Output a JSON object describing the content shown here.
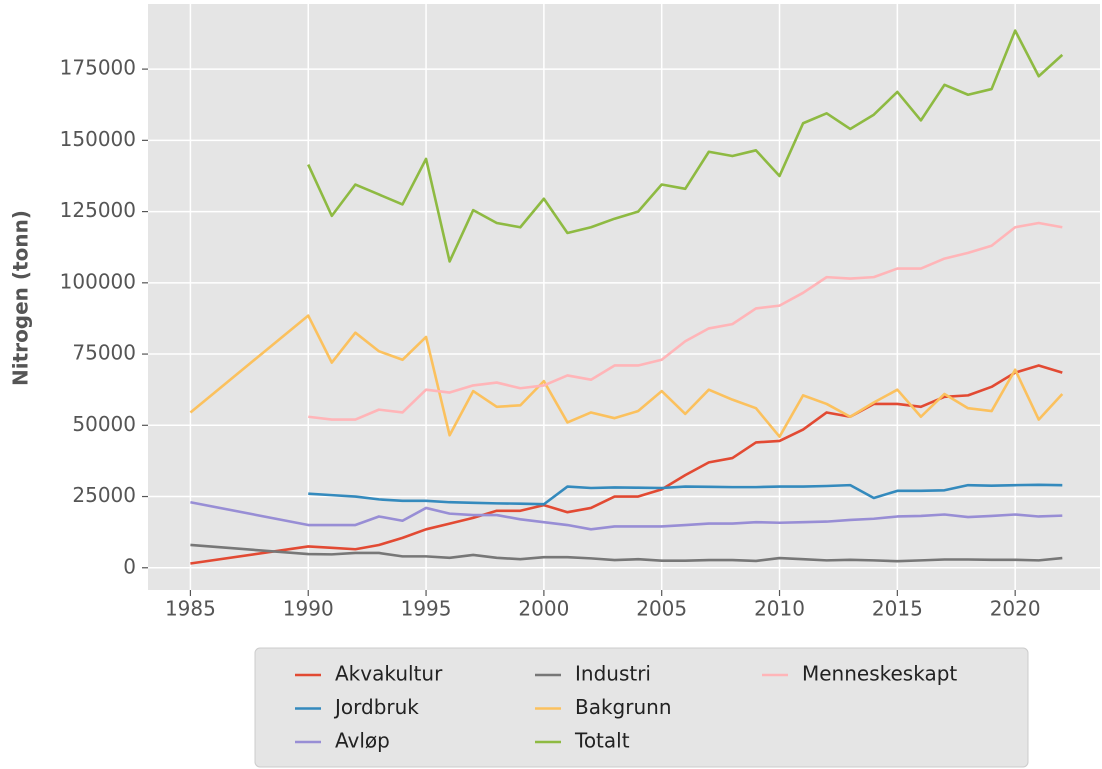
{
  "chart_data": {
    "type": "line",
    "ylabel": "Nitrogen (tonn)",
    "x": [
      1985,
      1990,
      1991,
      1992,
      1993,
      1994,
      1995,
      1996,
      1997,
      1998,
      1999,
      2000,
      2001,
      2002,
      2003,
      2004,
      2005,
      2006,
      2007,
      2008,
      2009,
      2010,
      2011,
      2012,
      2013,
      2014,
      2015,
      2016,
      2017,
      2018,
      2019,
      2020,
      2021,
      2022
    ],
    "series": [
      {
        "name": "Akvakultur",
        "color": "#E24A33",
        "values": [
          1500,
          7500,
          7000,
          6500,
          8000,
          10500,
          13500,
          15500,
          17500,
          20000,
          20000,
          22000,
          19500,
          21000,
          25000,
          25000,
          27500,
          32500,
          37000,
          38500,
          44000,
          44500,
          48500,
          54500,
          53000,
          57500,
          57500,
          56500,
          60000,
          60500,
          63500,
          68500,
          71000,
          68500
        ]
      },
      {
        "name": "Jordbruk",
        "color": "#348ABD",
        "values": [
          null,
          26000,
          25500,
          25000,
          24000,
          23500,
          23500,
          23000,
          22800,
          22600,
          22500,
          22300,
          28500,
          28000,
          28200,
          28100,
          28000,
          28500,
          28400,
          28300,
          28300,
          28500,
          28500,
          28700,
          29000,
          24500,
          27000,
          27000,
          27200,
          29000,
          28800,
          29000,
          29100,
          29000
        ]
      },
      {
        "name": "Avløp",
        "color": "#988ED5",
        "values": [
          23000,
          15000,
          15000,
          15000,
          18000,
          16500,
          21000,
          19000,
          18500,
          18500,
          17000,
          16000,
          15000,
          13500,
          14500,
          14500,
          14500,
          15000,
          15500,
          15500,
          16000,
          15800,
          16000,
          16200,
          16800,
          17200,
          18000,
          18200,
          18700,
          17800,
          18200,
          18700,
          18000,
          18300
        ]
      },
      {
        "name": "Industri",
        "color": "#777777",
        "values": [
          8000,
          4800,
          4700,
          5200,
          5200,
          4000,
          4000,
          3500,
          4500,
          3500,
          3000,
          3700,
          3700,
          3300,
          2700,
          3000,
          2500,
          2500,
          2700,
          2700,
          2400,
          3400,
          3000,
          2600,
          2800,
          2600,
          2300,
          2600,
          2900,
          2900,
          2800,
          2800,
          2600,
          3400
        ]
      },
      {
        "name": "Bakgrunn",
        "color": "#FBC15E",
        "values": [
          54500,
          88500,
          72000,
          82500,
          76000,
          73000,
          81000,
          46500,
          62000,
          56500,
          57000,
          65500,
          51000,
          54500,
          52500,
          55000,
          62000,
          54000,
          62500,
          59000,
          56000,
          46000,
          60500,
          57500,
          53000,
          58000,
          62500,
          53000,
          61000,
          56000,
          55000,
          69500,
          52000,
          61000
        ]
      },
      {
        "name": "Totalt",
        "color": "#8EBA42",
        "values": [
          null,
          141500,
          123500,
          134500,
          131000,
          127500,
          143500,
          107500,
          125500,
          121000,
          119500,
          129500,
          117500,
          119500,
          122500,
          125000,
          134500,
          133000,
          146000,
          144500,
          146500,
          137500,
          156000,
          159500,
          154000,
          159000,
          167000,
          157000,
          169500,
          166000,
          168000,
          188500,
          172500,
          180000
        ]
      },
      {
        "name": "Menneskeskapt",
        "color": "#FFB5B8",
        "values": [
          null,
          53000,
          52000,
          52000,
          55500,
          54500,
          62500,
          61500,
          64000,
          65000,
          63000,
          64000,
          67500,
          66000,
          71000,
          71000,
          73000,
          79500,
          84000,
          85500,
          91000,
          92000,
          96500,
          102000,
          101500,
          102000,
          105000,
          105000,
          108500,
          110500,
          113000,
          119500,
          121000,
          119500
        ]
      }
    ],
    "xlim": [
      1983.2,
      2023.6
    ],
    "xticks": [
      1985,
      1990,
      1995,
      2000,
      2005,
      2010,
      2015,
      2020
    ],
    "ylim": [
      -7800,
      197850
    ],
    "yticks": [
      0,
      25000,
      50000,
      75000,
      100000,
      125000,
      150000,
      175000
    ],
    "grid": true,
    "legend": "bottom"
  }
}
